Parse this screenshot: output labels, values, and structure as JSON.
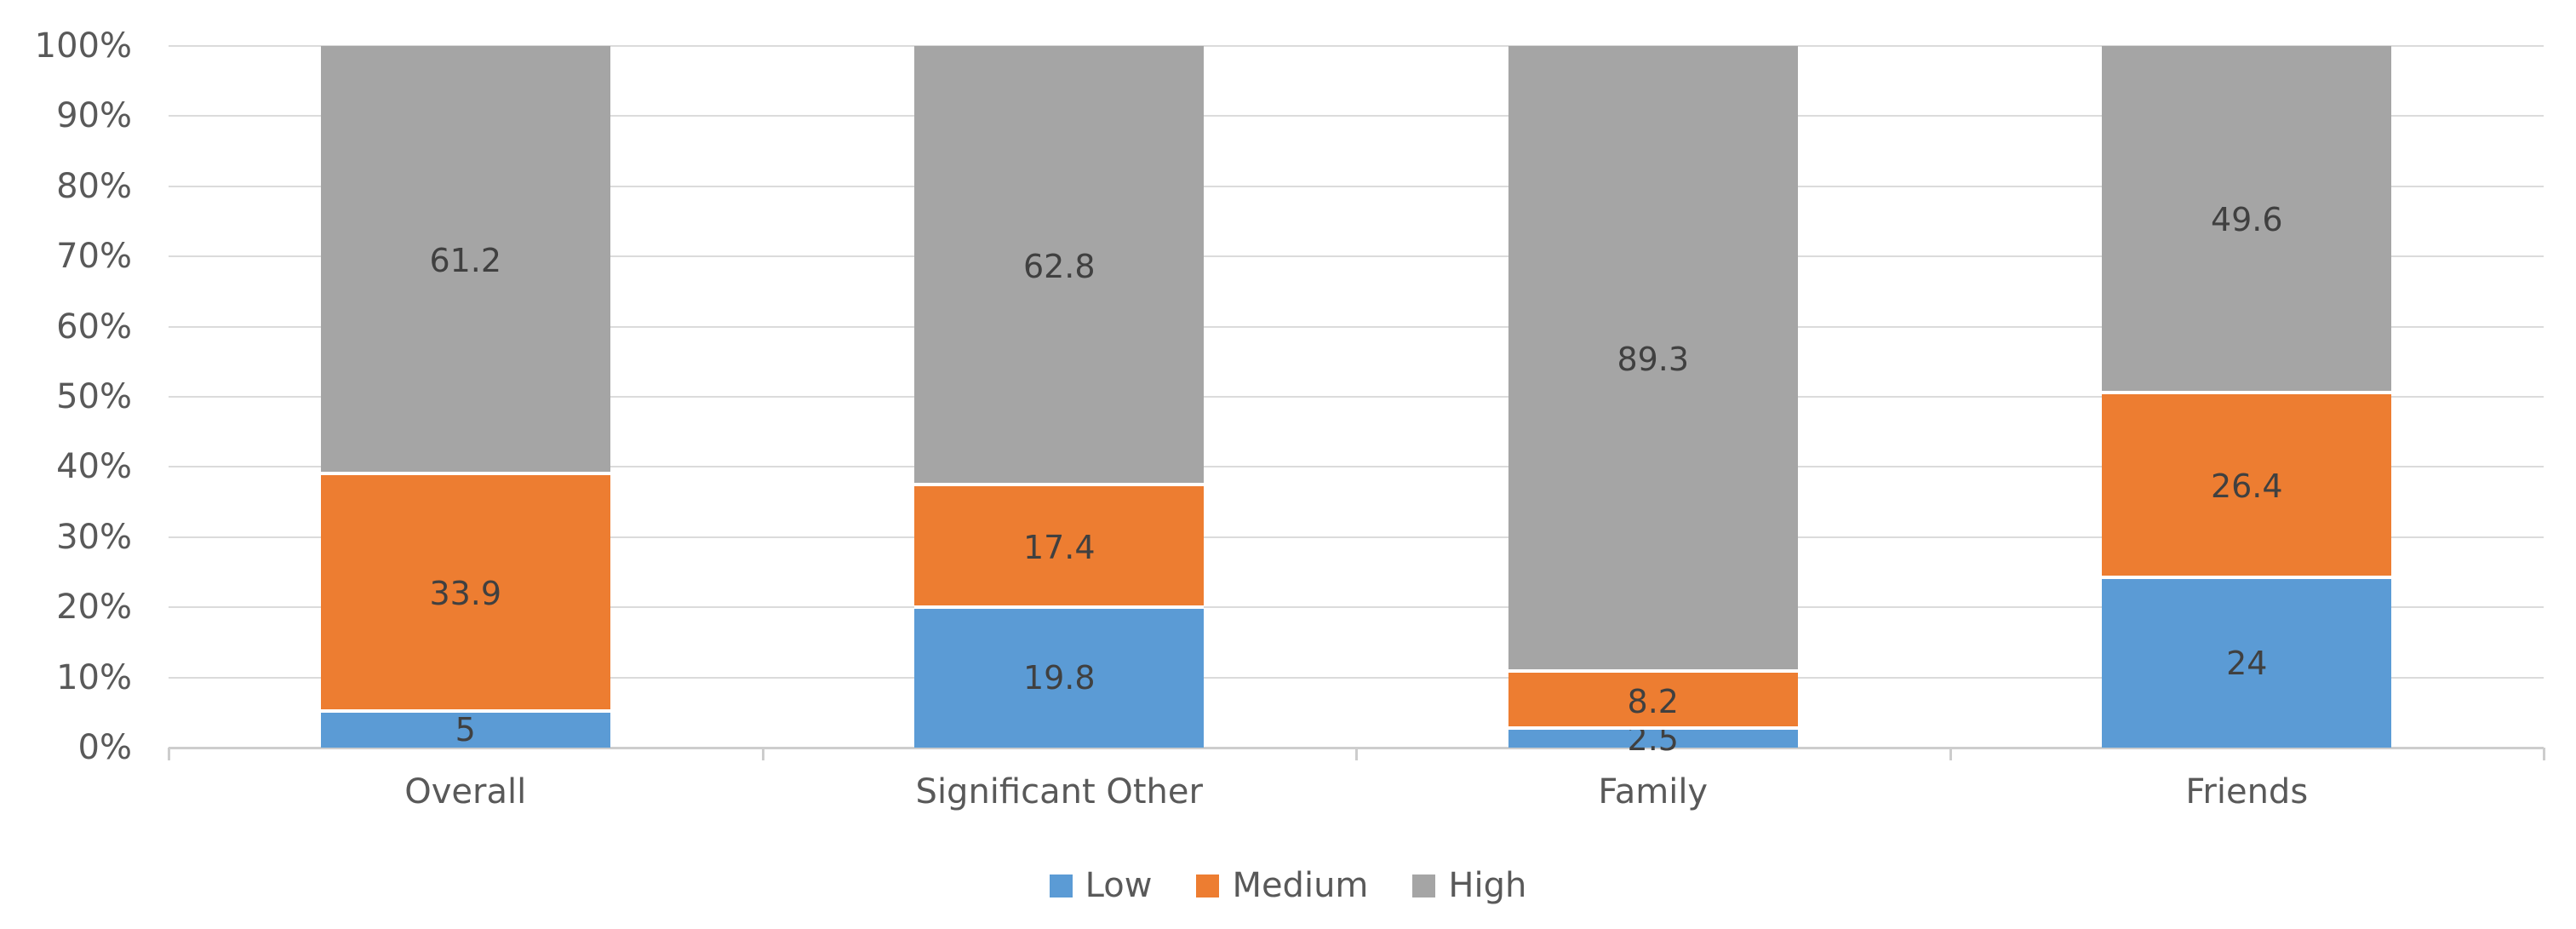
{
  "chart_data": {
    "type": "bar",
    "stacked": true,
    "percent_stacked": true,
    "title": "",
    "xlabel": "",
    "ylabel": "",
    "categories": [
      "Overall",
      "Significant Other",
      "Family",
      "Friends"
    ],
    "series": [
      {
        "name": "Low",
        "color": "#5B9BD5",
        "values": [
          5,
          19.8,
          2.5,
          24
        ]
      },
      {
        "name": "Medium",
        "color": "#ED7D31",
        "values": [
          33.9,
          17.4,
          8.2,
          26.4
        ]
      },
      {
        "name": "High",
        "color": "#A5A5A5",
        "values": [
          61.2,
          62.8,
          89.3,
          49.6
        ]
      }
    ],
    "ylim": [
      0,
      100
    ],
    "yticks": [
      "0%",
      "10%",
      "20%",
      "30%",
      "40%",
      "50%",
      "60%",
      "70%",
      "80%",
      "90%",
      "100%"
    ],
    "grid": true,
    "legend_position": "bottom"
  },
  "colors": {
    "background": "#FFFFFF",
    "gridline": "#DBDBDB",
    "axis_line": "#CDCDCD",
    "tick_label": "#595959",
    "category_label": "#595959",
    "legend_label": "#595959",
    "data_label": "#404040"
  }
}
